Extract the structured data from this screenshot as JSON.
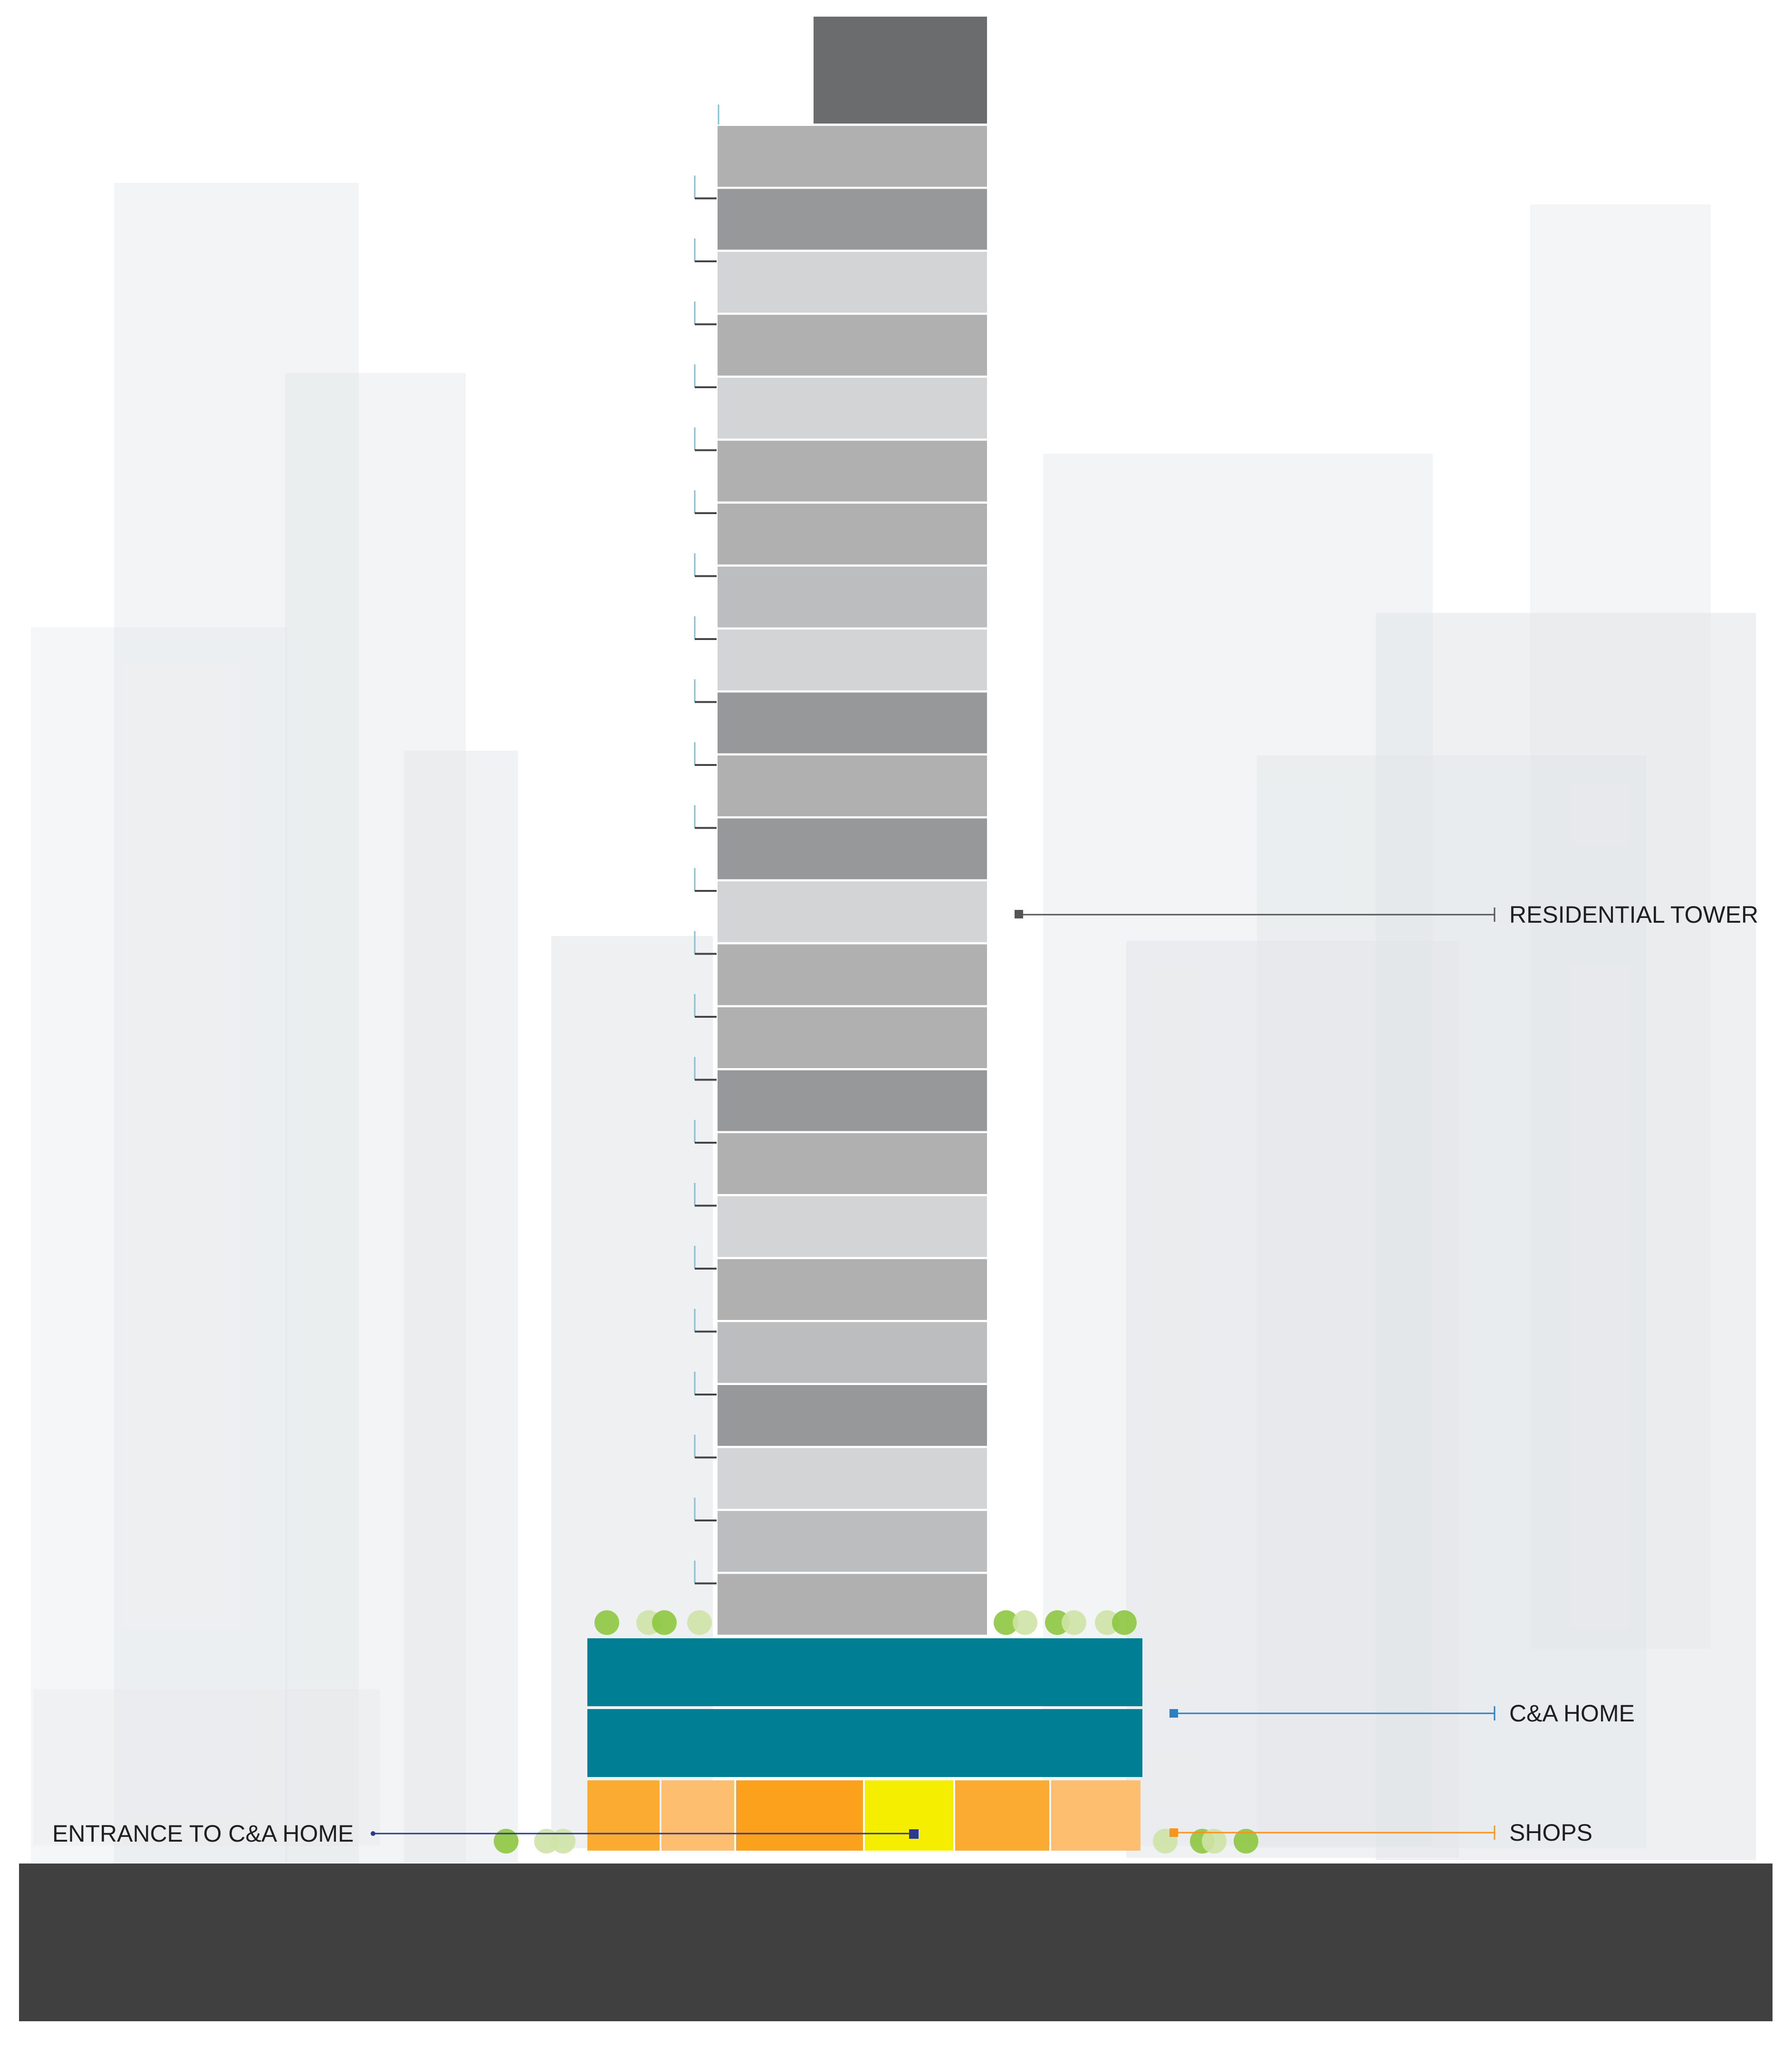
{
  "labels": {
    "residential_tower": "RESIDENTIAL TOWER",
    "ca_home": "C&A HOME",
    "shops": "SHOPS",
    "entrance": "ENTRANCE TO C&A HOME"
  },
  "colors": {
    "background": "#ffffff",
    "ground": "#404040",
    "tower_cap": "#6b6c6e",
    "tower_floor_shades": [
      "#b0b0b0",
      "#97989a",
      "#d2d4d5",
      "#b0b0b0",
      "#d2d4d5",
      "#b0b0b0",
      "#b0b0b0",
      "#bcbdbf",
      "#d2d4d5",
      "#97989a",
      "#b0b0b0",
      "#97989a",
      "#d2d4d5",
      "#b0b0b0",
      "#b0b0b0",
      "#97989a",
      "#b0b0b0",
      "#d2d4d5",
      "#b0b0b0",
      "#bcbdbf",
      "#97989a",
      "#d2d4d5",
      "#bcbdbf",
      "#b0b0b0"
    ],
    "ca_home": "#007e93",
    "shop_units": [
      "#fbab31",
      "#fdbf6f",
      "#fba11b",
      "#f5ee00",
      "#fbab31",
      "#fdbf6f"
    ],
    "tree_light": "#cfe3a6",
    "tree_dark": "#8dc63f",
    "leader_residential": "#555555",
    "leader_ca_home": "#2d7fc0",
    "leader_shops": "#f7941d",
    "leader_entrance": "#2b3a8f"
  },
  "icons": [
    "tree-icon",
    "marker-square-icon"
  ]
}
